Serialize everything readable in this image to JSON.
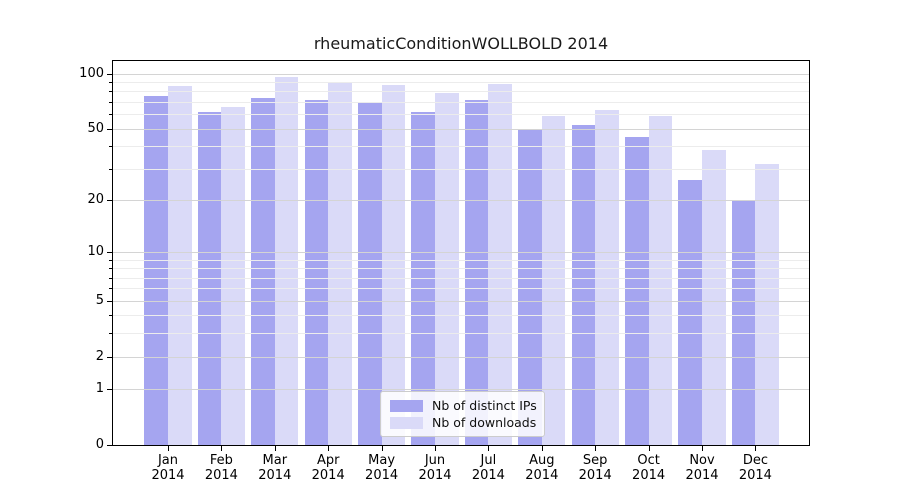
{
  "title": "rheumaticConditionWOLLBOLD 2014",
  "legend": {
    "items": [
      {
        "label": "Nb of distinct IPs",
        "color": "#a5a5f0"
      },
      {
        "label": "Nb of downloads",
        "color": "#dadaf8"
      }
    ]
  },
  "y_axis": {
    "tick_values": [
      100,
      50,
      20,
      10,
      5,
      2,
      1,
      0
    ],
    "tick_labels": [
      "100",
      "50",
      "20",
      "10",
      "5",
      "2",
      "1",
      "0"
    ],
    "grid_major_values": [
      1,
      2,
      5,
      10,
      20,
      50,
      100
    ],
    "grid_minor_values": [
      3,
      4,
      6,
      7,
      8,
      9,
      30,
      40,
      60,
      70,
      80,
      90
    ],
    "scale": "log10(1+x)"
  },
  "x_axis": {
    "months": [
      "Jan",
      "Feb",
      "Mar",
      "Apr",
      "May",
      "Jun",
      "Jul",
      "Aug",
      "Sep",
      "Oct",
      "Nov",
      "Dec"
    ],
    "year": "2014"
  },
  "colors": {
    "distinct_ips": "#a5a5f0",
    "downloads": "#dadaf8",
    "grid_major": "#d4d4d4",
    "grid_minor": "#ececec",
    "axis": "#000000",
    "legend_border": "#cccccc"
  },
  "chart_data": {
    "type": "bar",
    "categories": [
      "Jan 2014",
      "Feb 2014",
      "Mar 2014",
      "Apr 2014",
      "May 2014",
      "Jun 2014",
      "Jul 2014",
      "Aug 2014",
      "Sep 2014",
      "Oct 2014",
      "Nov 2014",
      "Dec 2014"
    ],
    "series": [
      {
        "name": "Nb of distinct IPs",
        "values": [
          75,
          62,
          74,
          72,
          70,
          62,
          72,
          50,
          52,
          45,
          26,
          20
        ]
      },
      {
        "name": "Nb of downloads",
        "values": [
          86,
          66,
          96,
          89,
          87,
          78,
          88,
          59,
          63,
          59,
          38,
          32
        ]
      }
    ],
    "title": "rheumaticConditionWOLLBOLD 2014",
    "xlabel": "",
    "ylabel": "",
    "yscale": "log10(1+x)",
    "ylim": [
      0,
      119
    ],
    "y_ticks": [
      0,
      1,
      2,
      5,
      10,
      20,
      50,
      100
    ],
    "grid": true,
    "legend_position": "bottom-center"
  }
}
